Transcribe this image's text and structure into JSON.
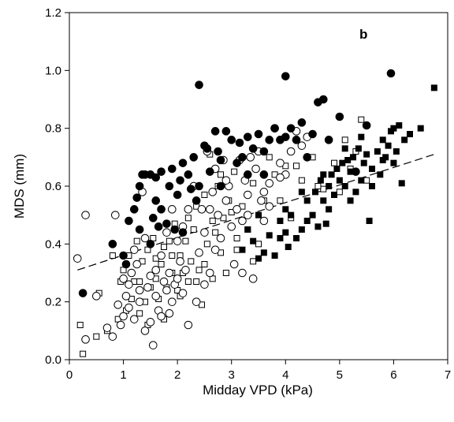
{
  "chart_data": {
    "type": "scatter",
    "title": "",
    "panel_label": "b",
    "xlabel": "Midday VPD (kPa)",
    "ylabel": "MDS (mm)",
    "xlim": [
      0,
      7
    ],
    "ylim": [
      0,
      1.2
    ],
    "x_ticks": [
      0,
      1,
      2,
      3,
      4,
      5,
      6,
      7
    ],
    "y_ticks": [
      0.0,
      0.2,
      0.4,
      0.6,
      0.8,
      1.0,
      1.2
    ],
    "x_tick_labels": [
      "0",
      "1",
      "2",
      "3",
      "4",
      "5",
      "6",
      "7"
    ],
    "y_tick_labels": [
      "0.0",
      "0.2",
      "0.4",
      "0.6",
      "0.8",
      "1.0",
      "1.2"
    ],
    "grid": false,
    "legend": "none",
    "series": [
      {
        "marker": "filled-circle",
        "color": "#000000",
        "points": [
          [
            0.25,
            0.23
          ],
          [
            1.0,
            0.36
          ],
          [
            1.1,
            0.48
          ],
          [
            1.2,
            0.52
          ],
          [
            1.25,
            0.56
          ],
          [
            1.3,
            0.6
          ],
          [
            1.35,
            0.64
          ],
          [
            1.4,
            0.64
          ],
          [
            1.5,
            0.64
          ],
          [
            1.55,
            0.49
          ],
          [
            1.6,
            0.63
          ],
          [
            1.65,
            0.46
          ],
          [
            1.7,
            0.65
          ],
          [
            1.8,
            0.47
          ],
          [
            1.85,
            0.6
          ],
          [
            1.9,
            0.66
          ],
          [
            1.95,
            0.45
          ],
          [
            2.0,
            0.57
          ],
          [
            2.05,
            0.62
          ],
          [
            2.1,
            0.44
          ],
          [
            2.2,
            0.64
          ],
          [
            2.25,
            0.59
          ],
          [
            2.3,
            0.7
          ],
          [
            2.35,
            0.55
          ],
          [
            2.4,
            0.95
          ],
          [
            2.5,
            0.74
          ],
          [
            2.55,
            0.73
          ],
          [
            2.6,
            0.65
          ],
          [
            2.7,
            0.79
          ],
          [
            2.75,
            0.72
          ],
          [
            2.8,
            0.6
          ],
          [
            2.9,
            0.79
          ],
          [
            3.0,
            0.76
          ],
          [
            3.1,
            0.68
          ],
          [
            3.15,
            0.75
          ],
          [
            3.2,
            0.7
          ],
          [
            3.3,
            0.77
          ],
          [
            3.4,
            0.73
          ],
          [
            3.5,
            0.78
          ],
          [
            3.6,
            0.72
          ],
          [
            3.7,
            0.76
          ],
          [
            3.8,
            0.8
          ],
          [
            3.9,
            0.76
          ],
          [
            4.0,
            0.98
          ],
          [
            4.1,
            0.8
          ],
          [
            4.2,
            0.76
          ],
          [
            4.3,
            0.82
          ],
          [
            4.4,
            0.7
          ],
          [
            4.5,
            0.78
          ],
          [
            4.6,
            0.89
          ],
          [
            4.7,
            0.9
          ],
          [
            4.8,
            0.76
          ],
          [
            5.0,
            0.84
          ],
          [
            5.3,
            0.65
          ],
          [
            5.5,
            0.81
          ],
          [
            5.95,
            0.99
          ],
          [
            1.5,
            0.4
          ],
          [
            1.7,
            0.52
          ],
          [
            2.1,
            0.68
          ],
          [
            1.3,
            0.45
          ],
          [
            0.8,
            0.4
          ],
          [
            1.05,
            0.33
          ],
          [
            1.6,
            0.55
          ],
          [
            2.4,
            0.6
          ],
          [
            2.8,
            0.69
          ],
          [
            3.3,
            0.64
          ],
          [
            3.6,
            0.64
          ],
          [
            4.0,
            0.77
          ]
        ]
      },
      {
        "marker": "open-circle",
        "color": "#000000",
        "points": [
          [
            0.15,
            0.35
          ],
          [
            0.3,
            0.07
          ],
          [
            0.3,
            0.5
          ],
          [
            0.5,
            0.22
          ],
          [
            0.7,
            0.11
          ],
          [
            0.8,
            0.08
          ],
          [
            0.85,
            0.5
          ],
          [
            0.9,
            0.19
          ],
          [
            1.0,
            0.15
          ],
          [
            1.05,
            0.22
          ],
          [
            1.1,
            0.26
          ],
          [
            1.15,
            0.3
          ],
          [
            1.2,
            0.14
          ],
          [
            1.25,
            0.33
          ],
          [
            1.3,
            0.2
          ],
          [
            1.35,
            0.58
          ],
          [
            1.4,
            0.42
          ],
          [
            1.45,
            0.25
          ],
          [
            1.5,
            0.29
          ],
          [
            1.55,
            0.05
          ],
          [
            1.6,
            0.31
          ],
          [
            1.65,
            0.17
          ],
          [
            1.7,
            0.36
          ],
          [
            1.75,
            0.27
          ],
          [
            1.8,
            0.44
          ],
          [
            1.85,
            0.3
          ],
          [
            1.9,
            0.52
          ],
          [
            1.95,
            0.26
          ],
          [
            2.0,
            0.41
          ],
          [
            2.05,
            0.34
          ],
          [
            2.1,
            0.46
          ],
          [
            2.15,
            0.31
          ],
          [
            2.2,
            0.12
          ],
          [
            2.3,
            0.6
          ],
          [
            2.35,
            0.2
          ],
          [
            2.4,
            0.37
          ],
          [
            2.45,
            0.52
          ],
          [
            2.5,
            0.44
          ],
          [
            2.55,
            0.72
          ],
          [
            2.6,
            0.3
          ],
          [
            2.65,
            0.58
          ],
          [
            2.7,
            0.66
          ],
          [
            2.75,
            0.5
          ],
          [
            2.8,
            0.42
          ],
          [
            2.85,
            0.69
          ],
          [
            2.9,
            0.55
          ],
          [
            2.95,
            0.6
          ],
          [
            3.0,
            0.46
          ],
          [
            3.05,
            0.33
          ],
          [
            3.1,
            0.52
          ],
          [
            3.15,
            0.69
          ],
          [
            3.2,
            0.3
          ],
          [
            3.25,
            0.62
          ],
          [
            3.3,
            0.57
          ],
          [
            3.35,
            0.7
          ],
          [
            3.4,
            0.28
          ],
          [
            3.45,
            0.66
          ],
          [
            3.5,
            0.72
          ],
          [
            3.55,
            0.55
          ],
          [
            3.6,
            0.48
          ],
          [
            3.7,
            0.61
          ],
          [
            3.8,
            0.8
          ],
          [
            3.9,
            0.68
          ],
          [
            4.0,
            0.64
          ],
          [
            4.1,
            0.72
          ],
          [
            4.2,
            0.79
          ],
          [
            4.3,
            0.74
          ],
          [
            4.4,
            0.77
          ],
          [
            1.2,
            0.38
          ],
          [
            1.4,
            0.1
          ],
          [
            1.6,
            0.22
          ],
          [
            1.8,
            0.24
          ],
          [
            2.0,
            0.28
          ],
          [
            2.2,
            0.52
          ],
          [
            2.5,
            0.26
          ],
          [
            2.7,
            0.38
          ],
          [
            1.0,
            0.28
          ],
          [
            1.3,
            0.24
          ],
          [
            1.5,
            0.13
          ],
          [
            1.7,
            0.15
          ],
          [
            1.9,
            0.2
          ],
          [
            2.1,
            0.23
          ],
          [
            3.2,
            0.48
          ],
          [
            3.6,
            0.58
          ],
          [
            3.9,
            0.63
          ],
          [
            1.1,
            0.18
          ],
          [
            0.95,
            0.12
          ],
          [
            1.85,
            0.16
          ],
          [
            2.6,
            0.52
          ],
          [
            2.9,
            0.62
          ],
          [
            3.3,
            0.5
          ],
          [
            3.7,
            0.53
          ]
        ]
      },
      {
        "marker": "open-square",
        "color": "#000000",
        "points": [
          [
            0.2,
            0.12
          ],
          [
            0.25,
            0.02
          ],
          [
            0.5,
            0.08
          ],
          [
            0.55,
            0.23
          ],
          [
            0.7,
            0.1
          ],
          [
            0.8,
            0.36
          ],
          [
            0.9,
            0.14
          ],
          [
            1.0,
            0.31
          ],
          [
            1.05,
            0.17
          ],
          [
            1.1,
            0.36
          ],
          [
            1.15,
            0.21
          ],
          [
            1.2,
            0.27
          ],
          [
            1.25,
            0.41
          ],
          [
            1.3,
            0.16
          ],
          [
            1.35,
            0.34
          ],
          [
            1.4,
            0.2
          ],
          [
            1.45,
            0.38
          ],
          [
            1.5,
            0.25
          ],
          [
            1.55,
            0.42
          ],
          [
            1.6,
            0.28
          ],
          [
            1.65,
            0.21
          ],
          [
            1.7,
            0.33
          ],
          [
            1.75,
            0.39
          ],
          [
            1.8,
            0.25
          ],
          [
            1.85,
            0.41
          ],
          [
            1.9,
            0.3
          ],
          [
            1.95,
            0.47
          ],
          [
            2.0,
            0.24
          ],
          [
            2.05,
            0.36
          ],
          [
            2.1,
            0.3
          ],
          [
            2.15,
            0.41
          ],
          [
            2.2,
            0.49
          ],
          [
            2.25,
            0.34
          ],
          [
            2.3,
            0.45
          ],
          [
            2.35,
            0.53
          ],
          [
            2.4,
            0.31
          ],
          [
            2.45,
            0.19
          ],
          [
            2.5,
            0.57
          ],
          [
            2.55,
            0.4
          ],
          [
            2.6,
            0.71
          ],
          [
            2.65,
            0.48
          ],
          [
            2.7,
            0.44
          ],
          [
            2.75,
            0.6
          ],
          [
            2.8,
            0.64
          ],
          [
            2.85,
            0.49
          ],
          [
            2.9,
            0.3
          ],
          [
            2.95,
            0.55
          ],
          [
            3.0,
            0.51
          ],
          [
            3.05,
            0.65
          ],
          [
            3.1,
            0.38
          ],
          [
            3.2,
            0.53
          ],
          [
            3.3,
            0.45
          ],
          [
            3.4,
            0.61
          ],
          [
            3.5,
            0.4
          ],
          [
            3.6,
            0.55
          ],
          [
            3.7,
            0.7
          ],
          [
            3.8,
            0.64
          ],
          [
            3.9,
            0.55
          ],
          [
            4.0,
            0.67
          ],
          [
            4.1,
            0.49
          ],
          [
            4.3,
            0.62
          ],
          [
            4.5,
            0.7
          ],
          [
            4.7,
            0.59
          ],
          [
            4.9,
            0.68
          ],
          [
            5.0,
            0.58
          ],
          [
            5.2,
            0.66
          ],
          [
            5.3,
            0.72
          ],
          [
            5.4,
            0.83
          ],
          [
            5.5,
            0.62
          ],
          [
            1.3,
            0.27
          ],
          [
            1.6,
            0.35
          ],
          [
            1.9,
            0.36
          ],
          [
            2.2,
            0.27
          ],
          [
            2.5,
            0.33
          ],
          [
            2.8,
            0.37
          ],
          [
            3.1,
            0.42
          ],
          [
            3.4,
            0.34
          ],
          [
            0.95,
            0.27
          ],
          [
            1.45,
            0.12
          ],
          [
            1.75,
            0.14
          ],
          [
            2.05,
            0.22
          ],
          [
            2.35,
            0.27
          ],
          [
            2.65,
            0.28
          ],
          [
            4.2,
            0.67
          ],
          [
            4.6,
            0.6
          ],
          [
            5.1,
            0.76
          ]
        ]
      },
      {
        "marker": "filled-square",
        "color": "#000000",
        "points": [
          [
            3.2,
            0.38
          ],
          [
            3.3,
            0.45
          ],
          [
            3.4,
            0.41
          ],
          [
            3.5,
            0.5
          ],
          [
            3.6,
            0.37
          ],
          [
            3.7,
            0.43
          ],
          [
            3.8,
            0.36
          ],
          [
            3.9,
            0.48
          ],
          [
            4.0,
            0.44
          ],
          [
            4.05,
            0.39
          ],
          [
            4.1,
            0.5
          ],
          [
            4.2,
            0.42
          ],
          [
            4.3,
            0.45
          ],
          [
            4.4,
            0.55
          ],
          [
            4.5,
            0.5
          ],
          [
            4.55,
            0.58
          ],
          [
            4.6,
            0.46
          ],
          [
            4.65,
            0.62
          ],
          [
            4.7,
            0.55
          ],
          [
            4.75,
            0.47
          ],
          [
            4.8,
            0.6
          ],
          [
            4.85,
            0.64
          ],
          [
            4.9,
            0.57
          ],
          [
            4.95,
            0.66
          ],
          [
            5.0,
            0.62
          ],
          [
            5.05,
            0.68
          ],
          [
            5.1,
            0.6
          ],
          [
            5.15,
            0.69
          ],
          [
            5.2,
            0.65
          ],
          [
            5.25,
            0.7
          ],
          [
            5.3,
            0.58
          ],
          [
            5.35,
            0.73
          ],
          [
            5.4,
            0.62
          ],
          [
            5.45,
            0.68
          ],
          [
            5.5,
            0.71
          ],
          [
            5.55,
            0.48
          ],
          [
            5.6,
            0.66
          ],
          [
            5.7,
            0.72
          ],
          [
            5.75,
            0.64
          ],
          [
            5.8,
            0.76
          ],
          [
            5.85,
            0.7
          ],
          [
            5.9,
            0.74
          ],
          [
            5.95,
            0.79
          ],
          [
            6.0,
            0.8
          ],
          [
            6.05,
            0.72
          ],
          [
            6.1,
            0.81
          ],
          [
            6.15,
            0.61
          ],
          [
            6.2,
            0.76
          ],
          [
            6.3,
            0.78
          ],
          [
            6.5,
            0.8
          ],
          [
            6.75,
            0.94
          ],
          [
            4.0,
            0.52
          ],
          [
            4.4,
            0.48
          ],
          [
            4.8,
            0.52
          ],
          [
            5.2,
            0.55
          ],
          [
            5.6,
            0.6
          ],
          [
            6.0,
            0.68
          ],
          [
            3.5,
            0.35
          ],
          [
            3.9,
            0.42
          ],
          [
            4.3,
            0.58
          ],
          [
            4.7,
            0.64
          ],
          [
            5.1,
            0.73
          ],
          [
            5.4,
            0.77
          ],
          [
            5.8,
            0.69
          ]
        ]
      }
    ],
    "trend_line": {
      "style": "dashed",
      "color": "#000000",
      "from": [
        0.15,
        0.31
      ],
      "to": [
        6.75,
        0.71
      ]
    }
  }
}
